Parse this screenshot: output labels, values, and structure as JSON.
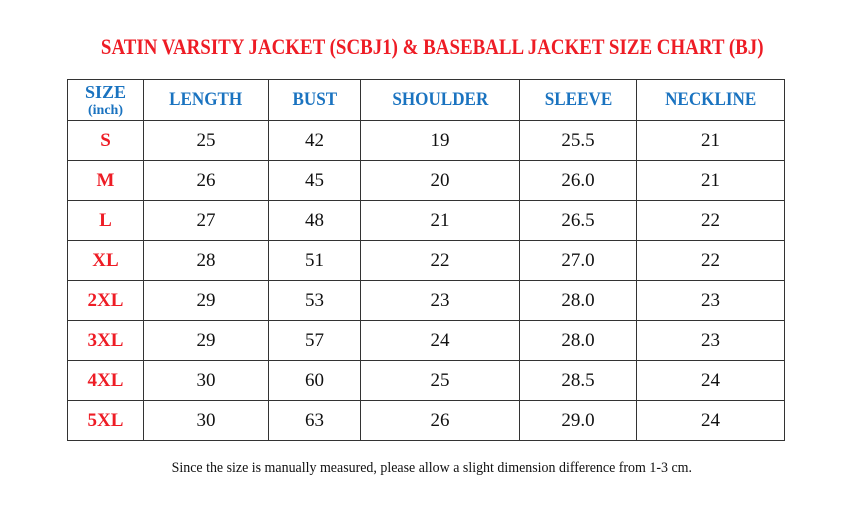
{
  "title": "SATIN VARSITY JACKET (SCBJ1) & BASEBALL JACKET SIZE CHART (BJ)",
  "table": {
    "size_header": "SIZE",
    "size_unit": "(inch)",
    "columns": [
      "LENGTH",
      "BUST",
      "SHOULDER",
      "SLEEVE",
      "NECKLINE"
    ],
    "rows": [
      {
        "size": "S",
        "values": [
          "25",
          "42",
          "19",
          "25.5",
          "21"
        ]
      },
      {
        "size": "M",
        "values": [
          "26",
          "45",
          "20",
          "26.0",
          "21"
        ]
      },
      {
        "size": "L",
        "values": [
          "27",
          "48",
          "21",
          "26.5",
          "22"
        ]
      },
      {
        "size": "XL",
        "values": [
          "28",
          "51",
          "22",
          "27.0",
          "22"
        ]
      },
      {
        "size": "2XL",
        "values": [
          "29",
          "53",
          "23",
          "28.0",
          "23"
        ]
      },
      {
        "size": "3XL",
        "values": [
          "29",
          "57",
          "24",
          "28.0",
          "23"
        ]
      },
      {
        "size": "4XL",
        "values": [
          "30",
          "60",
          "25",
          "28.5",
          "24"
        ]
      },
      {
        "size": "5XL",
        "values": [
          "30",
          "63",
          "26",
          "29.0",
          "24"
        ]
      }
    ]
  },
  "note": "Since the size is manually measured, please allow a slight dimension difference from 1-3 cm.",
  "colors": {
    "title": "#ee1c25",
    "header": "#1a73c0",
    "size_label": "#ee1c25"
  }
}
